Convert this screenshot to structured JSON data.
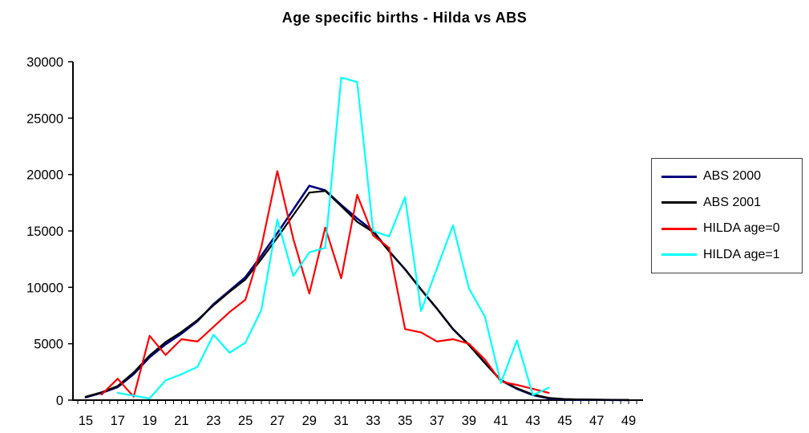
{
  "chart_data": {
    "type": "line",
    "title": "Age specific births - Hilda vs ABS",
    "xlabel": "",
    "ylabel": "",
    "xlim": [
      14.2,
      49.8
    ],
    "ylim": [
      0,
      30000
    ],
    "grid": false,
    "legend_position": "right",
    "y_ticks": [
      0,
      5000,
      10000,
      15000,
      20000,
      25000,
      30000
    ],
    "x_tick_labels": [
      "15",
      "17",
      "19",
      "21",
      "23",
      "25",
      "27",
      "29",
      "31",
      "33",
      "35",
      "37",
      "39",
      "41",
      "43",
      "45",
      "47",
      "49"
    ],
    "series": [
      {
        "name": "ABS 2000",
        "color": "#000080",
        "points": [
          [
            15,
            250
          ],
          [
            16,
            650
          ],
          [
            17,
            1150
          ],
          [
            18,
            2300
          ],
          [
            19,
            3800
          ],
          [
            20,
            4950
          ],
          [
            21,
            5900
          ],
          [
            22,
            7000
          ],
          [
            23,
            8500
          ],
          [
            24,
            9700
          ],
          [
            25,
            10900
          ],
          [
            26,
            12800
          ],
          [
            27,
            14800
          ],
          [
            28,
            16900
          ],
          [
            29,
            19000
          ],
          [
            30,
            18600
          ],
          [
            31,
            17300
          ],
          [
            32,
            16100
          ],
          [
            33,
            15000
          ],
          [
            34,
            13200
          ],
          [
            35,
            11600
          ],
          [
            36,
            9800
          ],
          [
            37,
            8100
          ],
          [
            38,
            6300
          ],
          [
            39,
            4900
          ],
          [
            40,
            3300
          ],
          [
            41,
            1750
          ],
          [
            42,
            1000
          ],
          [
            43,
            450
          ],
          [
            44,
            150
          ],
          [
            45,
            70
          ],
          [
            46,
            40
          ],
          [
            47,
            25
          ],
          [
            48,
            15
          ],
          [
            49,
            10
          ]
        ]
      },
      {
        "name": "ABS 2001",
        "color": "#000000",
        "points": [
          [
            15,
            300
          ],
          [
            16,
            700
          ],
          [
            17,
            1250
          ],
          [
            18,
            2450
          ],
          [
            19,
            3950
          ],
          [
            20,
            5150
          ],
          [
            21,
            6050
          ],
          [
            22,
            7100
          ],
          [
            23,
            8400
          ],
          [
            24,
            9600
          ],
          [
            25,
            10700
          ],
          [
            26,
            12500
          ],
          [
            27,
            14400
          ],
          [
            28,
            16400
          ],
          [
            29,
            18400
          ],
          [
            30,
            18550
          ],
          [
            31,
            17200
          ],
          [
            32,
            15800
          ],
          [
            33,
            14900
          ],
          [
            34,
            13200
          ],
          [
            35,
            11600
          ],
          [
            36,
            9800
          ],
          [
            37,
            8100
          ],
          [
            38,
            6300
          ],
          [
            39,
            4900
          ],
          [
            40,
            3300
          ],
          [
            41,
            1800
          ],
          [
            42,
            1050
          ],
          [
            43,
            500
          ],
          [
            44,
            200
          ],
          [
            45,
            90
          ],
          [
            46,
            55
          ],
          [
            47,
            35
          ],
          [
            48,
            20
          ],
          [
            49,
            10
          ]
        ]
      },
      {
        "name": "HILDA age=0",
        "color": "#FF0000",
        "points": [
          [
            16,
            500
          ],
          [
            17,
            1900
          ],
          [
            18,
            300
          ],
          [
            19,
            5700
          ],
          [
            20,
            4000
          ],
          [
            21,
            5400
          ],
          [
            22,
            5200
          ],
          [
            23,
            6500
          ],
          [
            24,
            7800
          ],
          [
            25,
            8900
          ],
          [
            26,
            13600
          ],
          [
            27,
            20300
          ],
          [
            28,
            14300
          ],
          [
            29,
            9450
          ],
          [
            30,
            15300
          ],
          [
            31,
            10800
          ],
          [
            32,
            18200
          ],
          [
            33,
            14600
          ],
          [
            34,
            13500
          ],
          [
            35,
            6300
          ],
          [
            36,
            6000
          ],
          [
            37,
            5200
          ],
          [
            38,
            5400
          ],
          [
            39,
            5000
          ],
          [
            40,
            3600
          ],
          [
            41,
            1650
          ],
          [
            42,
            1350
          ],
          [
            43,
            1000
          ],
          [
            44,
            650
          ]
        ]
      },
      {
        "name": "HILDA age=1",
        "color": "#00FFFF",
        "points": [
          [
            17,
            650
          ],
          [
            18,
            400
          ],
          [
            19,
            150
          ],
          [
            20,
            1750
          ],
          [
            21,
            2300
          ],
          [
            22,
            2950
          ],
          [
            23,
            5800
          ],
          [
            24,
            4200
          ],
          [
            25,
            5100
          ],
          [
            26,
            8000
          ],
          [
            27,
            16000
          ],
          [
            28,
            11000
          ],
          [
            29,
            13100
          ],
          [
            30,
            13500
          ],
          [
            31,
            28600
          ],
          [
            32,
            28200
          ],
          [
            33,
            15000
          ],
          [
            34,
            14500
          ],
          [
            35,
            18000
          ],
          [
            36,
            7900
          ],
          [
            37,
            11700
          ],
          [
            38,
            15500
          ],
          [
            39,
            9900
          ],
          [
            40,
            7400
          ],
          [
            41,
            1500
          ],
          [
            42,
            5300
          ],
          [
            43,
            450
          ],
          [
            44,
            1100
          ]
        ]
      }
    ]
  }
}
